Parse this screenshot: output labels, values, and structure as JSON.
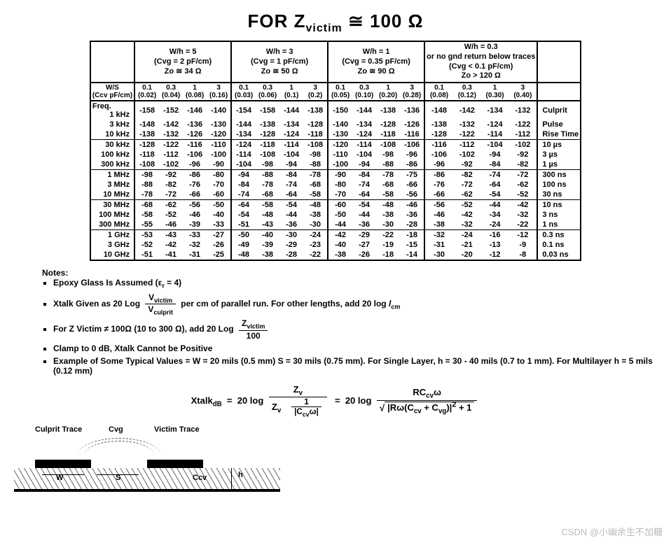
{
  "title_prefix": "FOR Z",
  "title_sub": "victim",
  "title_suffix": " ≅ 100 Ω",
  "col_headers": [
    {
      "wh": "W/h = 5",
      "cvg": "(Cvg = 2 pF/cm)",
      "zo": "Zo ≅ 34 Ω"
    },
    {
      "wh": "W/h = 3",
      "cvg": "(Cvg = 1 pF/cm)",
      "zo": "Zo ≅ 50 Ω"
    },
    {
      "wh": "W/h = 1",
      "cvg": "(Cvg = 0.35 pF/cm)",
      "zo": "Zo ≅ 90 Ω"
    },
    {
      "wh": "W/h = 0.3",
      "extra": "or no gnd return below traces",
      "cvg": "(Cvg < 0.1 pF/cm)",
      "zo": "Zo > 120 Ω"
    }
  ],
  "ws_label_1": "W/S",
  "ws_label_2": "(Ccv pF/cm)",
  "ws_values": [
    "0.1",
    "0.3",
    "1",
    "3"
  ],
  "ws_sub": [
    [
      "(0.02)",
      "(0.04)",
      "(0.08)",
      "(0.16)"
    ],
    [
      "(0.03)",
      "(0.06)",
      "(0.1)",
      "(0.2)"
    ],
    [
      "(0.05)",
      "(0.10)",
      "(0.20)",
      "(0.28)"
    ],
    [
      "(0.08)",
      "(0.12)",
      "(0.30)",
      "(0.40)"
    ]
  ],
  "freq_label": "Freq.",
  "culprit_label": "Culprit Pulse Rise Time",
  "groups": [
    {
      "rows": [
        {
          "f": "1 kHz",
          "v": [
            [
              "-158",
              "-152",
              "-146",
              "-140"
            ],
            [
              "-154",
              "-158",
              "-144",
              "-138"
            ],
            [
              "-150",
              "-144",
              "-138",
              "-136"
            ],
            [
              "-148",
              "-142",
              "-134",
              "-132"
            ]
          ],
          "note": "Culprit"
        },
        {
          "f": "3 kHz",
          "v": [
            [
              "-148",
              "-142",
              "-136",
              "-130"
            ],
            [
              "-144",
              "-138",
              "-134",
              "-128"
            ],
            [
              "-140",
              "-134",
              "-128",
              "-126"
            ],
            [
              "-138",
              "-132",
              "-124",
              "-122"
            ]
          ],
          "note": "Pulse"
        },
        {
          "f": "10 kHz",
          "v": [
            [
              "-138",
              "-132",
              "-126",
              "-120"
            ],
            [
              "-134",
              "-128",
              "-124",
              "-118"
            ],
            [
              "-130",
              "-124",
              "-118",
              "-116"
            ],
            [
              "-128",
              "-122",
              "-114",
              "-112"
            ]
          ],
          "note": "Rise Time"
        }
      ]
    },
    {
      "rows": [
        {
          "f": "30 kHz",
          "v": [
            [
              "-128",
              "-122",
              "-116",
              "-110"
            ],
            [
              "-124",
              "-118",
              "-114",
              "-108"
            ],
            [
              "-120",
              "-114",
              "-108",
              "-106"
            ],
            [
              "-116",
              "-112",
              "-104",
              "-102"
            ]
          ],
          "note": "10 µs"
        },
        {
          "f": "100 kHz",
          "v": [
            [
              "-118",
              "-112",
              "-106",
              "-100"
            ],
            [
              "-114",
              "-108",
              "-104",
              "-98"
            ],
            [
              "-110",
              "-104",
              "-98",
              "-96"
            ],
            [
              "-106",
              "-102",
              "-94",
              "-92"
            ]
          ],
          "note": "3 µs"
        },
        {
          "f": "300 kHz",
          "v": [
            [
              "-108",
              "-102",
              "-96",
              "-90"
            ],
            [
              "-104",
              "-98",
              "-94",
              "-88"
            ],
            [
              "-100",
              "-94",
              "-88",
              "-86"
            ],
            [
              "-96",
              "-92",
              "-84",
              "-82"
            ]
          ],
          "note": "1 µs"
        }
      ]
    },
    {
      "rows": [
        {
          "f": "1 MHz",
          "v": [
            [
              "-98",
              "-92",
              "-86",
              "-80"
            ],
            [
              "-94",
              "-88",
              "-84",
              "-78"
            ],
            [
              "-90",
              "-84",
              "-78",
              "-75"
            ],
            [
              "-86",
              "-82",
              "-74",
              "-72"
            ]
          ],
          "note": "300 ns"
        },
        {
          "f": "3 MHz",
          "v": [
            [
              "-88",
              "-82",
              "-76",
              "-70"
            ],
            [
              "-84",
              "-78",
              "-74",
              "-68"
            ],
            [
              "-80",
              "-74",
              "-68",
              "-66"
            ],
            [
              "-76",
              "-72",
              "-64",
              "-62"
            ]
          ],
          "note": "100 ns"
        },
        {
          "f": "10 MHz",
          "v": [
            [
              "-78",
              "-72",
              "-66",
              "-60"
            ],
            [
              "-74",
              "-68",
              "-64",
              "-58"
            ],
            [
              "-70",
              "-64",
              "-58",
              "-56"
            ],
            [
              "-66",
              "-62",
              "-54",
              "-52"
            ]
          ],
          "note": "30 ns"
        }
      ]
    },
    {
      "rows": [
        {
          "f": "30 MHz",
          "v": [
            [
              "-68",
              "-62",
              "-56",
              "-50"
            ],
            [
              "-64",
              "-58",
              "-54",
              "-48"
            ],
            [
              "-60",
              "-54",
              "-48",
              "-46"
            ],
            [
              "-56",
              "-52",
              "-44",
              "-42"
            ]
          ],
          "note": "10 ns"
        },
        {
          "f": "100 MHz",
          "v": [
            [
              "-58",
              "-52",
              "-46",
              "-40"
            ],
            [
              "-54",
              "-48",
              "-44",
              "-38"
            ],
            [
              "-50",
              "-44",
              "-38",
              "-36"
            ],
            [
              "-46",
              "-42",
              "-34",
              "-32"
            ]
          ],
          "note": "3 ns"
        },
        {
          "f": "300 MHz",
          "v": [
            [
              "-55",
              "-46",
              "-39",
              "-33"
            ],
            [
              "-51",
              "-43",
              "-36",
              "-30"
            ],
            [
              "-44",
              "-36",
              "-30",
              "-28"
            ],
            [
              "-38",
              "-32",
              "-24",
              "-22"
            ]
          ],
          "note": "1 ns"
        }
      ]
    },
    {
      "rows": [
        {
          "f": "1 GHz",
          "v": [
            [
              "-53",
              "-43",
              "-33",
              "-27"
            ],
            [
              "-50",
              "-40",
              "-30",
              "-24"
            ],
            [
              "-42",
              "-29",
              "-22",
              "-18"
            ],
            [
              "-32",
              "-24",
              "-16",
              "-12"
            ]
          ],
          "note": "0.3 ns"
        },
        {
          "f": "3 GHz",
          "v": [
            [
              "-52",
              "-42",
              "-32",
              "-26"
            ],
            [
              "-49",
              "-39",
              "-29",
              "-23"
            ],
            [
              "-40",
              "-27",
              "-19",
              "-15"
            ],
            [
              "-31",
              "-21",
              "-13",
              "-9"
            ]
          ],
          "note": "0.1 ns"
        },
        {
          "f": "10 GHz",
          "v": [
            [
              "-51",
              "-41",
              "-31",
              "-25"
            ],
            [
              "-48",
              "-38",
              "-28",
              "-22"
            ],
            [
              "-38",
              "-26",
              "-18",
              "-14"
            ],
            [
              "-30",
              "-20",
              "-12",
              "-8"
            ]
          ],
          "note": "0.03 ns"
        }
      ]
    }
  ],
  "notes_hdr": "Notes:",
  "notes": [
    "Epoxy Glass Is Assumed (εr = 4)",
    "Xtalk Given as 20 Log (Vvictim / Vculprit) per cm of parallel run. For other lengths, add 20 log lcm",
    "For Z Victim ≠ 100Ω (10 to 300 Ω), add 20 Log (Zvictim / 100)",
    "Clamp to 0 dB, Xtalk Cannot be Positive",
    "Example of Some Typical Values = W = 20 mils (0.5 mm) S = 30 mils (0.75 mm). For Single Layer, h = 30 - 40 mils (0.7 to 1 mm). For Multilayer h = 5 mils (0.12 mm)"
  ],
  "formula_label": "XtalkdB = 20 log",
  "diagram": {
    "culprit": "Culprit Trace",
    "victim": "Victim Trace",
    "cvg": "Cvg",
    "ccv": "Ccv",
    "w": "W",
    "s": "S",
    "h": "h"
  },
  "watermark": "CSDN @小幽余生不加糖"
}
